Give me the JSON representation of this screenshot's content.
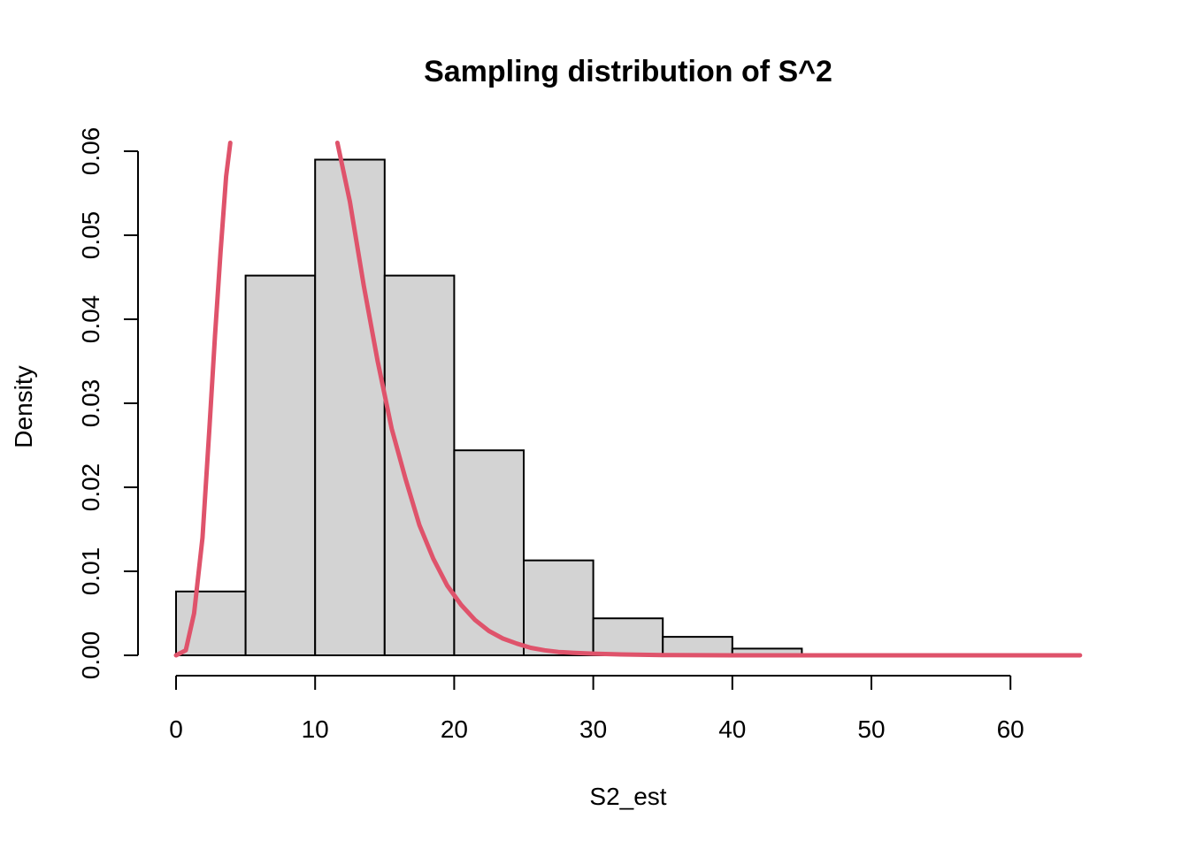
{
  "chart_data": {
    "type": "bar",
    "title": "Sampling distribution of S^2",
    "xlabel": "S2_est",
    "ylabel": "Density",
    "xlim": [
      0,
      65
    ],
    "ylim": [
      0,
      0.06
    ],
    "x_ticks": [
      0,
      10,
      20,
      30,
      40,
      50,
      60
    ],
    "x_tick_labels": [
      "0",
      "10",
      "20",
      "30",
      "40",
      "50",
      "60"
    ],
    "y_ticks": [
      0,
      0.01,
      0.02,
      0.03,
      0.04,
      0.05,
      0.06
    ],
    "y_tick_labels": [
      "0.00",
      "0.01",
      "0.02",
      "0.03",
      "0.04",
      "0.05",
      "0.06"
    ],
    "grid": false,
    "histogram": {
      "bins": [
        [
          0,
          5
        ],
        [
          5,
          10
        ],
        [
          10,
          15
        ],
        [
          15,
          20
        ],
        [
          20,
          25
        ],
        [
          25,
          30
        ],
        [
          30,
          35
        ],
        [
          35,
          40
        ],
        [
          40,
          45
        ]
      ],
      "values": [
        0.0076,
        0.0452,
        0.059,
        0.0452,
        0.0244,
        0.0113,
        0.0044,
        0.0022,
        0.0008
      ],
      "fill": "#d3d3d3",
      "edge": "#000000"
    },
    "series": [
      {
        "type": "line",
        "color": "#df536b",
        "x": [
          0,
          0.7,
          1.3,
          1.9,
          2.4,
          2.8,
          3.2,
          3.6,
          3.9
        ],
        "y": [
          0,
          0.0006,
          0.005,
          0.014,
          0.027,
          0.038,
          0.048,
          0.057,
          0.061
        ]
      },
      {
        "type": "line",
        "color": "#df536b",
        "x": [
          11.6,
          12.5,
          13.5,
          14.5,
          15.5,
          16.5,
          17.5,
          18.5,
          19.5,
          20.5,
          21.5,
          22.5,
          23.5,
          24.5,
          25.5,
          26.5,
          27.5,
          28.5,
          30,
          32,
          35,
          40,
          50,
          60,
          65
        ],
        "y": [
          0.061,
          0.054,
          0.044,
          0.035,
          0.027,
          0.021,
          0.0155,
          0.0115,
          0.0083,
          0.006,
          0.0042,
          0.0029,
          0.002,
          0.0014,
          0.0009,
          0.0006,
          0.0004,
          0.0003,
          0.0002,
          0.0001,
          3e-05,
          0,
          0,
          0,
          0
        ]
      }
    ]
  }
}
